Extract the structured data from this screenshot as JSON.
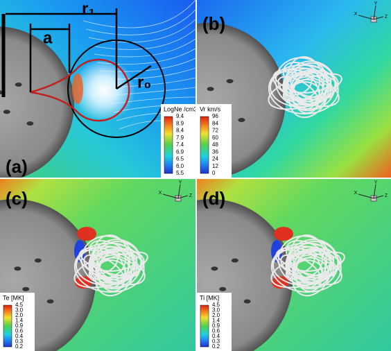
{
  "panels": [
    {
      "label": "(a)",
      "colorbar": {
        "title": "LogNe /cm3",
        "ticks": [
          "9.4",
          "8.9",
          "8.4",
          "7.9",
          "7.4",
          "6.9",
          "6.5",
          "6.0",
          "5.5"
        ]
      },
      "annotations": {
        "r1": "r₁",
        "a": "a",
        "r0": "r₀"
      }
    },
    {
      "label": "(b)",
      "colorbar": {
        "title": "Vr km/s",
        "ticks": [
          "96",
          "84",
          "72",
          "60",
          "48",
          "36",
          "24",
          "12",
          "0"
        ]
      },
      "axes": [
        "X",
        "Y",
        "Z"
      ]
    },
    {
      "label": "(c)",
      "colorbar": {
        "title": "Te [MK]",
        "ticks": [
          "4.5",
          "3.0",
          "2.0",
          "1.4",
          "0.9",
          "0.6",
          "0.4",
          "0.3",
          "0.2"
        ]
      },
      "axes": [
        "X",
        "Y",
        "Z"
      ]
    },
    {
      "label": "(d)",
      "colorbar": {
        "title": "Ti [MK]",
        "ticks": [
          "4.5",
          "3.0",
          "2.0",
          "1.4",
          "0.9",
          "0.6",
          "0.4",
          "0.3",
          "0.2"
        ]
      },
      "axes": [
        "X",
        "Y",
        "Z"
      ]
    }
  ]
}
